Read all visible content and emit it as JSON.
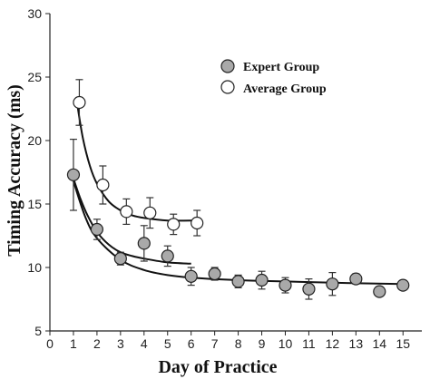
{
  "chart_data": {
    "type": "scatter",
    "title": "",
    "xlabel": "Day of Practice",
    "ylabel": "Timing Accuracy (ms)",
    "xlim": [
      0,
      15.8
    ],
    "ylim": [
      5,
      30
    ],
    "xticks": [
      0,
      1,
      2,
      3,
      4,
      5,
      6,
      7,
      8,
      9,
      10,
      11,
      12,
      13,
      14,
      15
    ],
    "yticks": [
      5,
      10,
      15,
      20,
      25,
      30
    ],
    "grid": false,
    "legend_position": "top-right",
    "series": [
      {
        "name": "Expert Group",
        "marker_fill": "#a9a9a9",
        "x": [
          1.0,
          2.0,
          3.0,
          4.0,
          5.0,
          6.0,
          7.0,
          8.0,
          9.0,
          10.0,
          11.0,
          12.0,
          13.0,
          14.0,
          15.0
        ],
        "y": [
          17.3,
          13.0,
          10.7,
          11.9,
          10.9,
          9.3,
          9.5,
          8.9,
          9.0,
          8.6,
          8.3,
          8.7,
          9.1,
          8.1,
          8.6
        ],
        "error": [
          2.8,
          0.8,
          0.5,
          1.4,
          0.8,
          0.7,
          0.5,
          0.5,
          0.7,
          0.6,
          0.8,
          0.9,
          0.4,
          0.3,
          0.3
        ],
        "fit": [
          {
            "x": [
              1.0,
              1.3,
              1.6,
              2.0,
              2.5,
              3.0,
              3.5,
              4.0,
              5.0,
              6.0
            ],
            "y": [
              17.0,
              15.4,
              14.1,
              12.8,
              11.8,
              11.2,
              10.9,
              10.7,
              10.4,
              10.3
            ]
          },
          {
            "x": [
              1.0,
              1.5,
              2.0,
              3.0,
              4.0,
              5.0,
              6.0,
              8.0,
              10.0,
              12.0,
              15.0
            ],
            "y": [
              16.8,
              14.0,
              12.3,
              10.6,
              9.8,
              9.4,
              9.2,
              9.0,
              8.9,
              8.8,
              8.7
            ]
          }
        ]
      },
      {
        "name": "Average Group",
        "marker_fill": "#ffffff",
        "x": [
          1.25,
          2.25,
          3.25,
          4.25,
          5.25,
          6.25
        ],
        "y": [
          23.0,
          16.5,
          14.4,
          14.3,
          13.4,
          13.5
        ],
        "error": [
          1.8,
          1.5,
          1.0,
          1.2,
          0.8,
          1.0
        ],
        "fit": [
          {
            "x": [
              1.15,
              1.4,
              1.7,
              2.0,
              2.5,
              3.0,
              3.5,
              4.0,
              5.0,
              6.25
            ],
            "y": [
              23.0,
              20.2,
              18.0,
              16.6,
              15.2,
              14.5,
              14.1,
              13.9,
              13.7,
              13.7
            ]
          }
        ]
      }
    ]
  }
}
